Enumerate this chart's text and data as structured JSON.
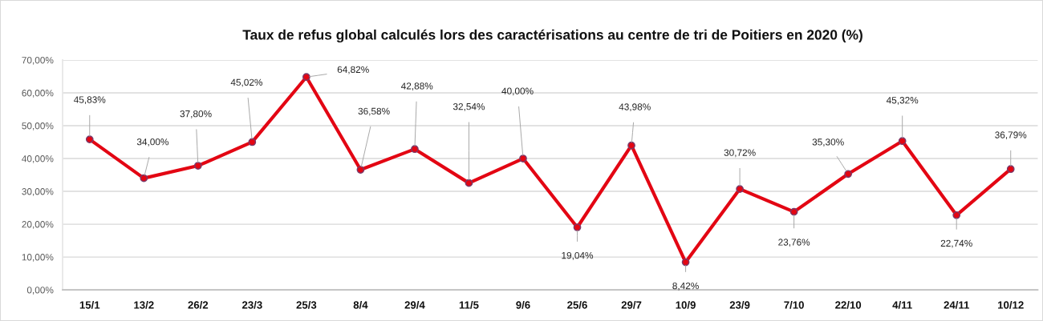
{
  "chart_data": {
    "type": "line",
    "title": "Taux de refus global calculés lors des caractérisations au centre de tri de Poitiers en 2020 (%)",
    "categories": [
      "15/1",
      "13/2",
      "26/2",
      "23/3",
      "25/3",
      "8/4",
      "29/4",
      "11/5",
      "9/6",
      "25/6",
      "29/7",
      "10/9",
      "23/9",
      "7/10",
      "22/10",
      "4/11",
      "24/11",
      "10/12"
    ],
    "series": [
      {
        "color": "#e30613",
        "values": [
          45.83,
          34.0,
          37.8,
          45.02,
          64.82,
          36.58,
          42.88,
          32.54,
          40.0,
          19.04,
          43.98,
          8.42,
          30.72,
          23.76,
          35.3,
          45.32,
          22.74,
          36.79
        ],
        "value_labels": [
          "45,83%",
          "34,00%",
          "37,80%",
          "45,02%",
          "64,82%",
          "36,58%",
          "42,88%",
          "32,54%",
          "40,00%",
          "19,04%",
          "43,98%",
          "8,42%",
          "30,72%",
          "23,76%",
          "35,30%",
          "45,32%",
          "22,74%",
          "36,79%"
        ]
      }
    ],
    "ylim": [
      0,
      70
    ],
    "yticks": [
      {
        "value": 0,
        "label": "0,00%"
      },
      {
        "value": 10,
        "label": "10,00%"
      },
      {
        "value": 20,
        "label": "20,00%"
      },
      {
        "value": 30,
        "label": "30,00%"
      },
      {
        "value": 40,
        "label": "40,00%"
      },
      {
        "value": 50,
        "label": "50,00%"
      },
      {
        "value": 60,
        "label": "60,00%"
      },
      {
        "value": 70,
        "label": "70,00%"
      }
    ],
    "grid": "y",
    "marker": "circle",
    "line_style": "solid"
  }
}
